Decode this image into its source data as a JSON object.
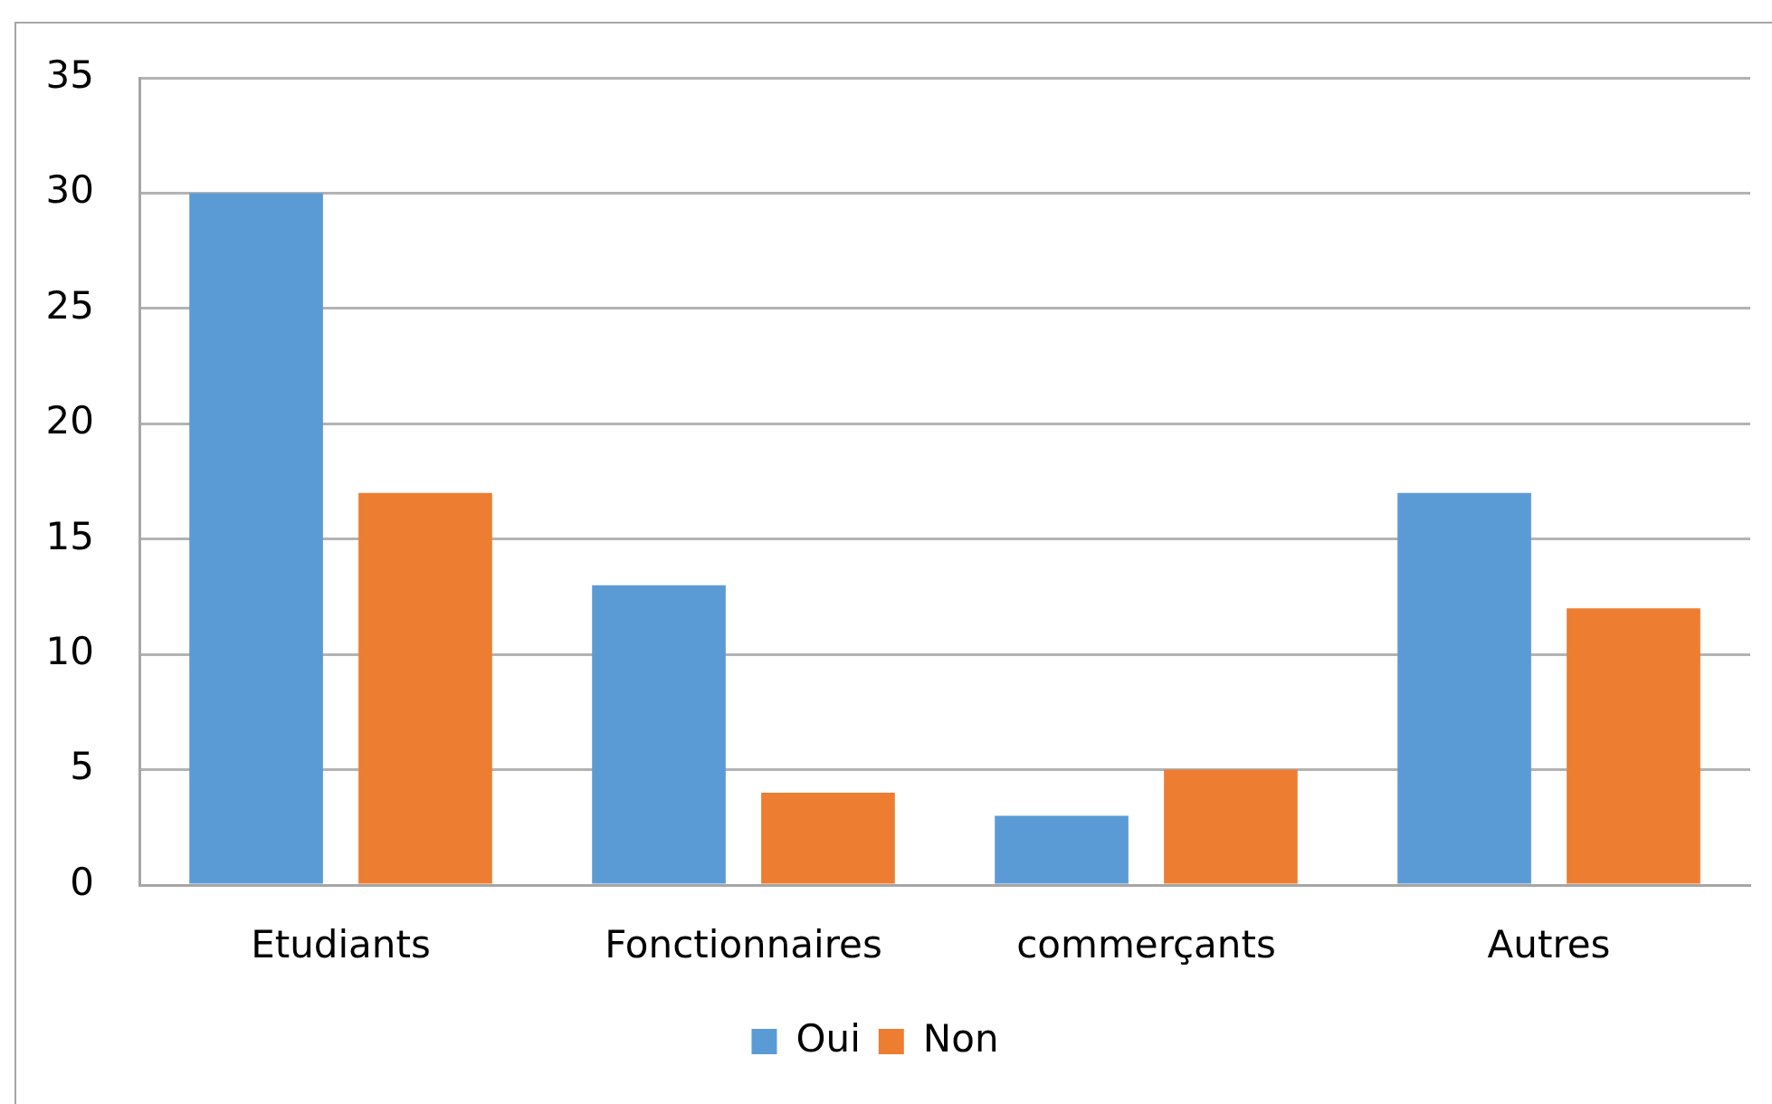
{
  "chart_data": {
    "type": "bar",
    "categories": [
      "Etudiants",
      "Fonctionnaires",
      "commerçants",
      "Autres"
    ],
    "series": [
      {
        "name": "Oui",
        "color": "#5b9bd5",
        "values": [
          30,
          13,
          3,
          17
        ]
      },
      {
        "name": "Non",
        "color": "#ed7d31",
        "values": [
          17,
          4,
          5,
          12
        ]
      }
    ],
    "ylim": [
      0,
      35
    ],
    "yticks": [
      0,
      5,
      10,
      15,
      20,
      25,
      30,
      35
    ],
    "grid": "y",
    "legend": "bottom"
  }
}
